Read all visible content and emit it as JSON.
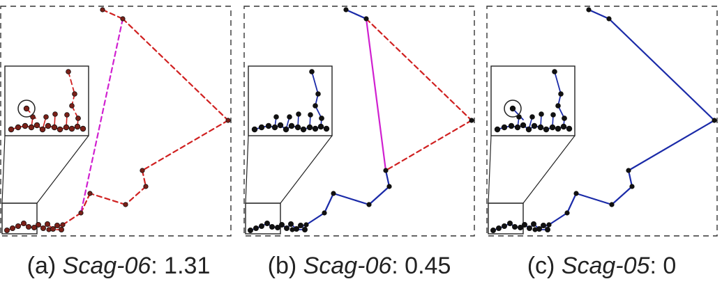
{
  "panels": [
    {
      "id": "a",
      "caption_prefix": "(a) ",
      "caption_name": "Scag-06",
      "caption_value": ": 1.31",
      "style": "red-outlier",
      "colors": {
        "red": "#d02020",
        "magenta": "#d020d0",
        "point_fill": "#7a2018"
      }
    },
    {
      "id": "b",
      "caption_prefix": "(b) ",
      "caption_name": "Scag-06",
      "caption_value": ": 0.45",
      "style": "blue-with-red",
      "colors": {
        "blue": "#1a2aa8",
        "red": "#d02020",
        "magenta": "#d020d0",
        "point_fill": "#111111"
      }
    },
    {
      "id": "c",
      "caption_prefix": "(c) ",
      "caption_name": "Scag-05",
      "caption_value": ": 0",
      "style": "all-blue",
      "colors": {
        "blue": "#1a2aa8",
        "point_fill": "#111111"
      }
    }
  ]
}
